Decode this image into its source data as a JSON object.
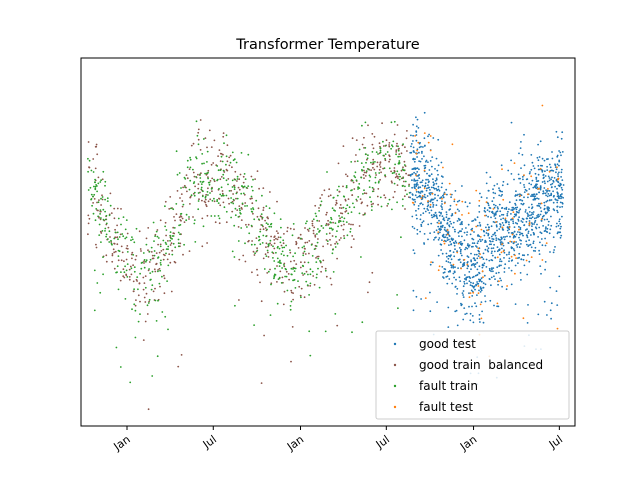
{
  "chart_data": {
    "type": "scatter",
    "title": "Transformer Temperature",
    "xlabel": "",
    "ylabel": "",
    "x_axis": {
      "kind": "date",
      "xlim": [
        "2019-09-26",
        "2022-08-03"
      ],
      "ticks": [
        {
          "date": "2020-01-01",
          "label": "Jan"
        },
        {
          "date": "2020-07-01",
          "label": "Jul"
        },
        {
          "date": "2021-01-01",
          "label": "Jan"
        },
        {
          "date": "2021-07-01",
          "label": "Jul"
        },
        {
          "date": "2022-01-01",
          "label": "Jan"
        },
        {
          "date": "2022-07-01",
          "label": "Jul"
        }
      ]
    },
    "y_axis": {
      "ticks_shown": false,
      "ylim": [
        -40,
        60
      ]
    },
    "grid": false,
    "legend_position": "lower right",
    "series": [
      {
        "name": "good test",
        "color": "#1f77b4",
        "range": [
          "2021-08-20",
          "2022-07-10"
        ],
        "trend": [
          [
            "2021-08-20",
            30
          ],
          [
            "2021-10-01",
            24
          ],
          [
            "2021-11-15",
            10
          ],
          [
            "2022-01-01",
            4
          ],
          [
            "2022-02-15",
            12
          ],
          [
            "2022-04-01",
            16
          ],
          [
            "2022-05-15",
            20
          ],
          [
            "2022-07-10",
            26
          ]
        ],
        "spread": 9,
        "note_values_approximate": true
      },
      {
        "name": "good train  balanced",
        "color": "#8c564b",
        "range": [
          "2019-10-10",
          "2021-08-20"
        ],
        "trend": [
          [
            "2019-10-10",
            26
          ],
          [
            "2019-12-15",
            8
          ],
          [
            "2020-01-25",
            0
          ],
          [
            "2020-03-20",
            6
          ],
          [
            "2020-05-20",
            26
          ],
          [
            "2020-08-01",
            28
          ],
          [
            "2020-10-01",
            14
          ],
          [
            "2020-12-15",
            3
          ],
          [
            "2021-02-15",
            10
          ],
          [
            "2021-04-15",
            22
          ],
          [
            "2021-06-15",
            32
          ],
          [
            "2021-08-01",
            30
          ],
          [
            "2021-08-20",
            28
          ]
        ],
        "spread": 8,
        "note_values_approximate": true
      },
      {
        "name": "fault train",
        "color": "#2ca02c",
        "range": [
          "2019-10-10",
          "2021-08-20"
        ],
        "trend": [
          [
            "2019-10-10",
            26
          ],
          [
            "2019-12-15",
            8
          ],
          [
            "2020-01-25",
            0
          ],
          [
            "2020-03-20",
            6
          ],
          [
            "2020-05-20",
            26
          ],
          [
            "2020-08-01",
            28
          ],
          [
            "2020-10-01",
            14
          ],
          [
            "2020-12-15",
            3
          ],
          [
            "2021-02-15",
            10
          ],
          [
            "2021-04-15",
            22
          ],
          [
            "2021-06-15",
            32
          ],
          [
            "2021-08-01",
            30
          ],
          [
            "2021-08-20",
            28
          ]
        ],
        "spread": 7,
        "note_values_approximate": true
      },
      {
        "name": "fault test",
        "color": "#ff7f0e",
        "range": [
          "2021-08-20",
          "2022-07-10"
        ],
        "trend": [
          [
            "2021-08-20",
            30
          ],
          [
            "2021-10-01",
            24
          ],
          [
            "2021-11-15",
            10
          ],
          [
            "2022-01-01",
            4
          ],
          [
            "2022-02-15",
            12
          ],
          [
            "2022-04-01",
            16
          ],
          [
            "2022-05-15",
            20
          ],
          [
            "2022-07-10",
            26
          ]
        ],
        "spread": 12,
        "note_values_approximate": true
      }
    ]
  }
}
